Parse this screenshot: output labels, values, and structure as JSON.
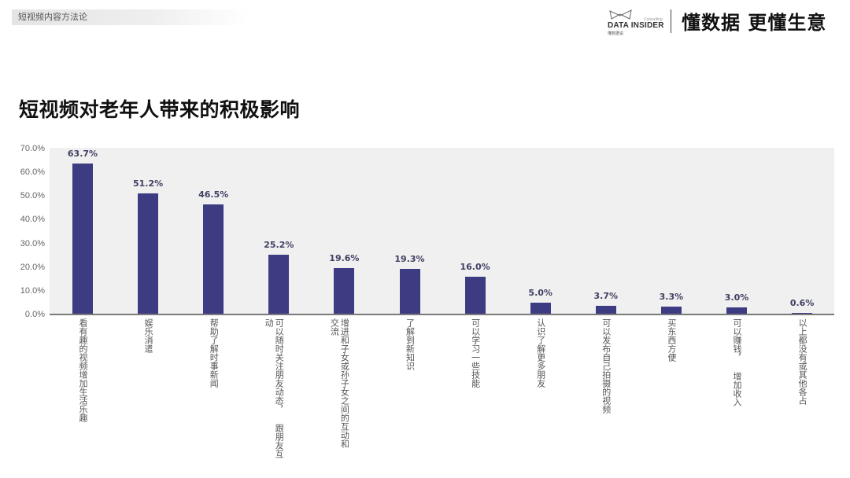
{
  "header": {
    "section_tag": "短视频内容方法论",
    "brand": {
      "logo_icon": "bowtie-logo-icon",
      "consulting": "Consulting",
      "name": "DATA INSIDER",
      "name_cn": "懂数据说",
      "slogan": "懂数据 更懂生意"
    }
  },
  "chart_data": {
    "type": "bar",
    "title": "短视频对老年人带来的积极影响",
    "xlabel": "",
    "ylabel": "",
    "ylim": [
      0,
      70
    ],
    "yticks": [
      "0.0%",
      "10.0%",
      "20.0%",
      "30.0%",
      "40.0%",
      "50.0%",
      "60.0%",
      "70.0%"
    ],
    "grid": false,
    "legend": null,
    "bar_color": "#3d3b82",
    "plot_background": "#f0f0f0",
    "categories": [
      "看有趣的视频增加生活乐趣",
      "娱乐消遣",
      "帮助了解时事新闻",
      "可以随时关注朋友动态，跟朋友互动",
      "增进和子女或孙子女之间的互动和交流",
      "了解到新知识",
      "可以学习一些技能",
      "认识了解更多朋友",
      "可以发布自己拍摄的视频",
      "买东西方便",
      "可以赚钱，增加收入",
      "以上都没有或其他各占"
    ],
    "values": [
      63.7,
      51.2,
      46.5,
      25.2,
      19.6,
      19.3,
      16.0,
      5.0,
      3.7,
      3.3,
      3.0,
      0.6
    ],
    "value_labels": [
      "63.7%",
      "51.2%",
      "46.5%",
      "25.2%",
      "19.6%",
      "19.3%",
      "16.0%",
      "5.0%",
      "3.7%",
      "3.3%",
      "3.0%",
      "0.6%"
    ],
    "category_label_lines": [
      [
        "看有趣的视频增加生活乐趣"
      ],
      [
        "娱乐消遣"
      ],
      [
        "帮助了解时事新闻"
      ],
      [
        "可以随时关注朋友动态，  跟朋友互",
        "动"
      ],
      [
        "增进和子女或孙子女之间的互动和",
        "交流"
      ],
      [
        "了解到新知识"
      ],
      [
        "可以学习一些技能"
      ],
      [
        "认识了解更多朋友"
      ],
      [
        "可以发布自己拍摄的视频"
      ],
      [
        "买东西方便"
      ],
      [
        "可以赚钱，  增加收入"
      ],
      [
        "以上都没有或其他各占"
      ]
    ]
  }
}
